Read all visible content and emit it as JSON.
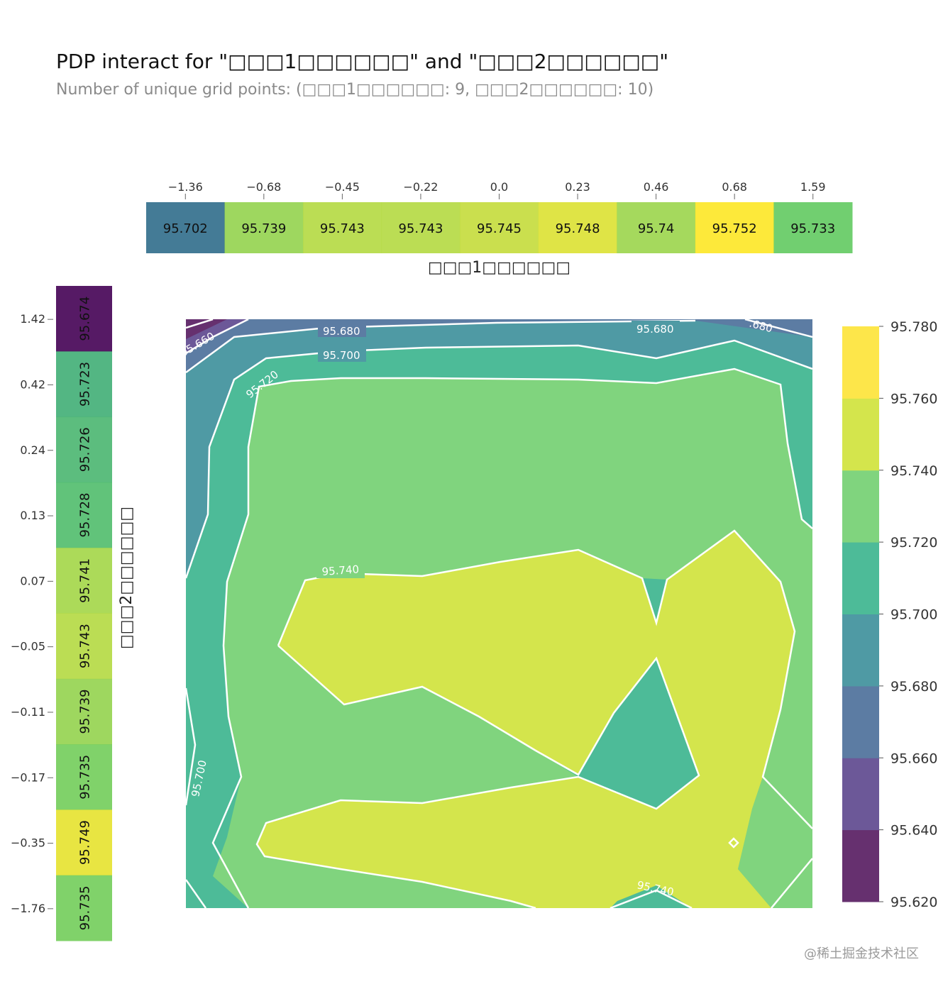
{
  "title": "PDP interact for \"□□□1□□□□□□\" and \"□□□2□□□□□□\"",
  "subtitle": "Number of unique grid points: (□□□1□□□□□□: 9, □□□2□□□□□□: 10)",
  "watermark": "@稀土掘金技术社区",
  "chart_data": [
    {
      "type": "heatmap",
      "name_role": "top marginal PDP (feature 1)",
      "xlabel": "□□□1□□□□□□",
      "categories": [
        "-1.36",
        "-0.68",
        "-0.45",
        "-0.22",
        "0.0",
        "0.23",
        "0.46",
        "0.68",
        "1.59"
      ],
      "values": [
        95.702,
        95.739,
        95.743,
        95.743,
        95.745,
        95.748,
        95.74,
        95.752,
        95.733
      ]
    },
    {
      "type": "heatmap",
      "name_role": "left marginal PDP (feature 2)",
      "ylabel": "□□□2□□□□□□",
      "categories": [
        "1.42",
        "0.42",
        "0.24",
        "0.13",
        "0.07",
        "-0.05",
        "-0.11",
        "-0.17",
        "-0.35",
        "-1.76"
      ],
      "values": [
        95.674,
        95.723,
        95.726,
        95.728,
        95.741,
        95.743,
        95.739,
        95.735,
        95.749,
        95.735
      ]
    },
    {
      "type": "contour",
      "name_role": "interaction contour",
      "contour_labels": [
        "95.660",
        "95.680",
        "95.680",
        ".680",
        "95.700",
        "95.720",
        "95.740",
        "95.700",
        "95.740"
      ],
      "levels": [
        95.62,
        95.64,
        95.66,
        95.68,
        95.7,
        95.72,
        95.74,
        95.76,
        95.78
      ],
      "colorbar_ticks": [
        "95.780",
        "95.760",
        "95.740",
        "95.720",
        "95.700",
        "95.680",
        "95.660",
        "95.640",
        "95.620"
      ],
      "colors": [
        "#66306f",
        "#6c5898",
        "#5c7ca3",
        "#4f9aa4",
        "#4dbb98",
        "#80d47e",
        "#d4e54c",
        "#fde64a"
      ]
    }
  ],
  "colormap_stops": [
    "#440154",
    "#3b528b",
    "#21918c",
    "#5ec962",
    "#fde725"
  ]
}
